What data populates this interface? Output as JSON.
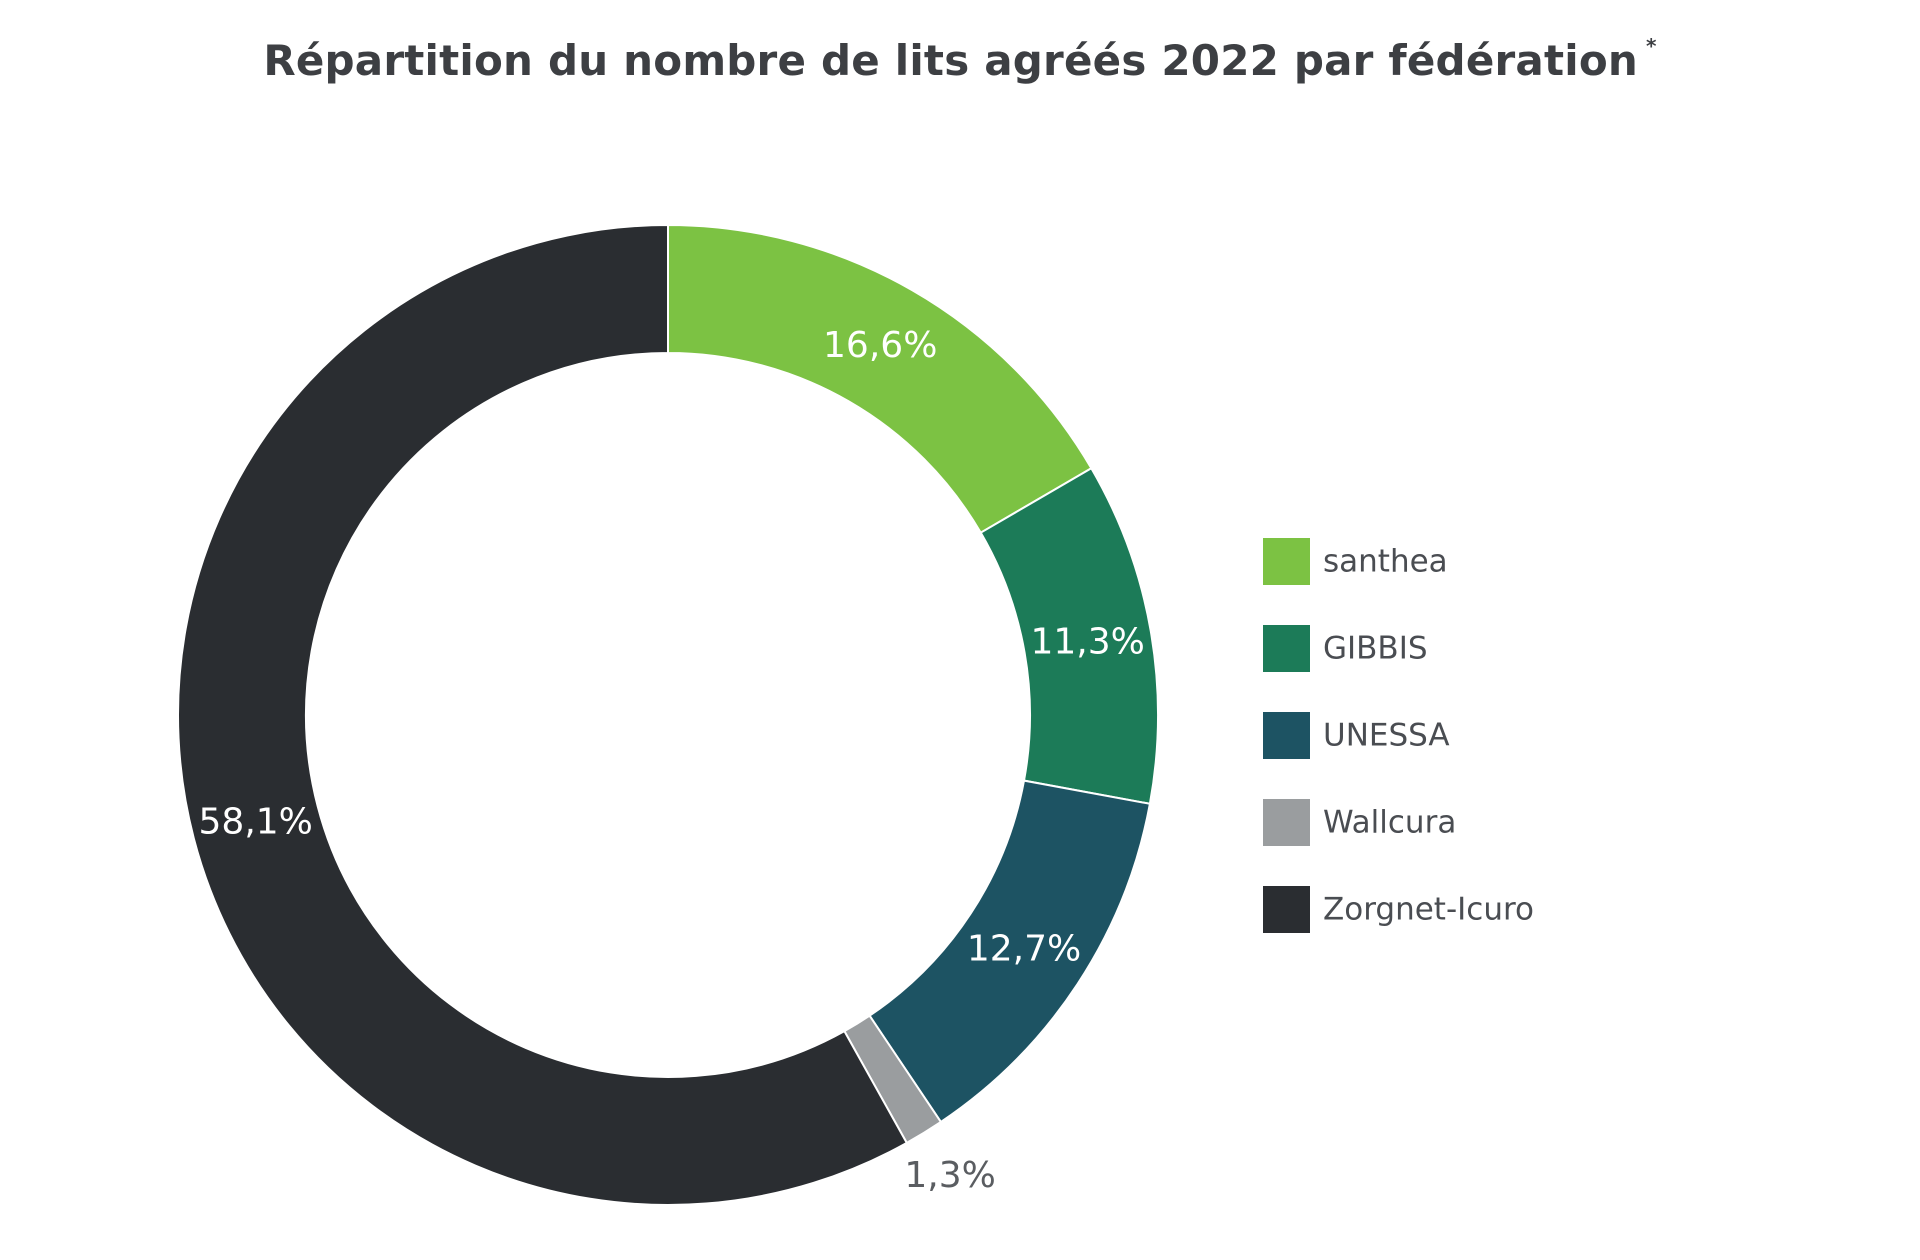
{
  "title": {
    "main": "Répartition du nombre de lits agréés 2022 par fédération",
    "mark": "*"
  },
  "chart_data": {
    "type": "pie",
    "variant": "donut",
    "legend_position": "right",
    "slices": [
      {
        "name": "santhea",
        "value": 16.6,
        "label": "16,6%",
        "color": "#7cc243",
        "label_color": "#ffffff"
      },
      {
        "name": "GIBBIS",
        "value": 11.3,
        "label": "11,3%",
        "color": "#1c7b58",
        "label_color": "#ffffff"
      },
      {
        "name": "UNESSA",
        "value": 12.7,
        "label": "12,7%",
        "color": "#1d5363",
        "label_color": "#ffffff"
      },
      {
        "name": "Wallcura",
        "value": 1.3,
        "label": "1,3%",
        "color": "#9a9d9f",
        "label_color": "#5a5d61"
      },
      {
        "name": "Zorgnet-Icuro",
        "value": 58.1,
        "label": "58,1%",
        "color": "#2a2d31",
        "label_color": "#ffffff"
      }
    ]
  }
}
